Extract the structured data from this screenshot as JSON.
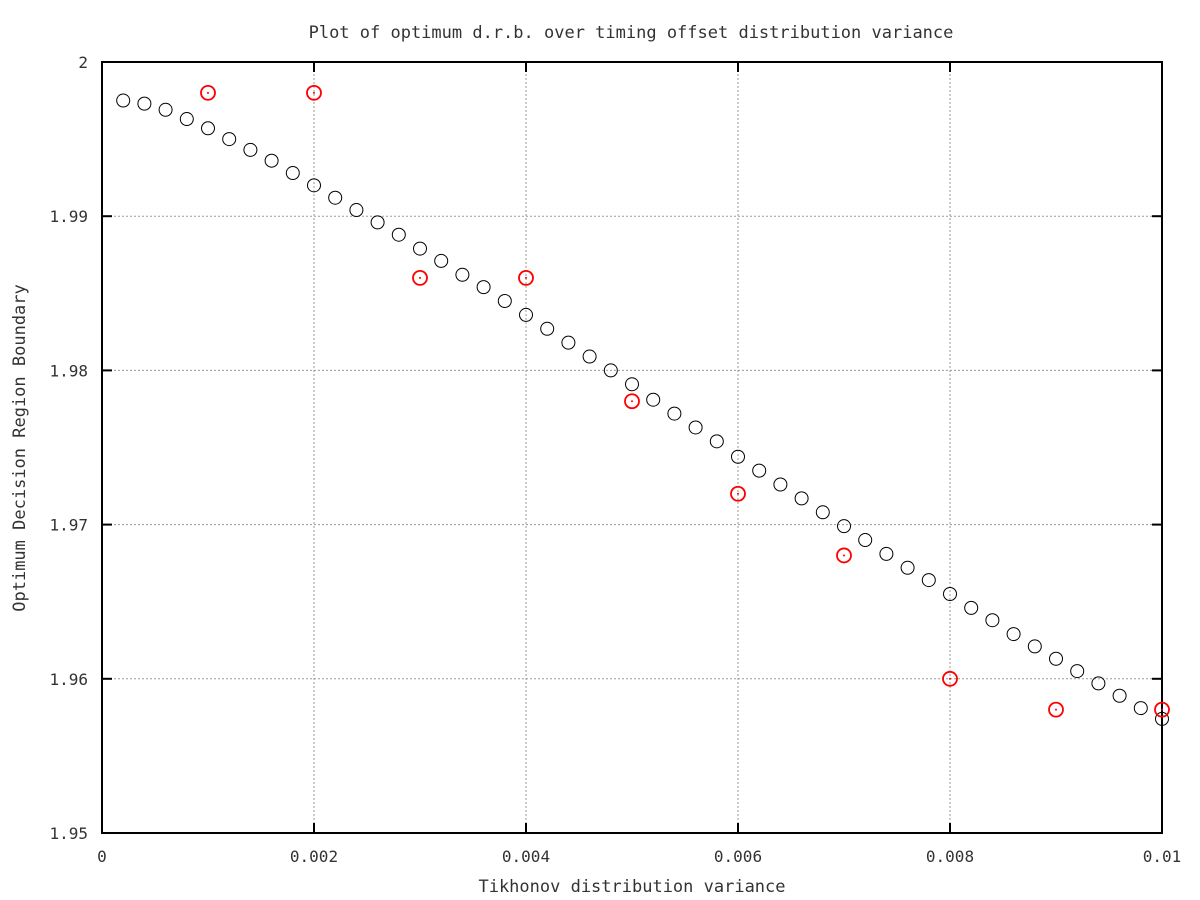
{
  "chart_data": {
    "type": "scatter",
    "title": "Plot of optimum d.r.b. over timing offset distribution variance",
    "xlabel": "Tikhonov distribution variance",
    "ylabel": "Optimum Decision Region Boundary",
    "xlim": [
      0,
      0.01
    ],
    "ylim": [
      1.95,
      2.0
    ],
    "x_ticks": [
      0,
      0.002,
      0.004,
      0.006,
      0.008,
      0.01
    ],
    "x_tick_labels": [
      "0",
      "0.002",
      "0.004",
      "0.006",
      "0.008",
      "0.01"
    ],
    "y_ticks": [
      1.95,
      1.96,
      1.97,
      1.98,
      1.99,
      2.0
    ],
    "y_tick_labels": [
      "1.95",
      "1.96",
      "1.97",
      "1.98",
      "1.99",
      "2"
    ],
    "grid": true,
    "legend": "none",
    "series": [
      {
        "color": "#000000",
        "marker": "open-circle",
        "x": [
          0.0002,
          0.0004,
          0.0006,
          0.0008,
          0.001,
          0.0012,
          0.0014,
          0.0016,
          0.0018,
          0.002,
          0.0022,
          0.0024,
          0.0026,
          0.0028,
          0.003,
          0.0032,
          0.0034,
          0.0036,
          0.0038,
          0.004,
          0.0042,
          0.0044,
          0.0046,
          0.0048,
          0.005,
          0.0052,
          0.0054,
          0.0056,
          0.0058,
          0.006,
          0.0062,
          0.0064,
          0.0066,
          0.0068,
          0.007,
          0.0072,
          0.0074,
          0.0076,
          0.0078,
          0.008,
          0.0082,
          0.0084,
          0.0086,
          0.0088,
          0.009,
          0.0092,
          0.0094,
          0.0096,
          0.0098,
          0.01
        ],
        "y": [
          1.9975,
          1.9973,
          1.9969,
          1.9963,
          1.9957,
          1.995,
          1.9943,
          1.9936,
          1.9928,
          1.992,
          1.9912,
          1.9904,
          1.9896,
          1.9888,
          1.9879,
          1.9871,
          1.9862,
          1.9854,
          1.9845,
          1.9836,
          1.9827,
          1.9818,
          1.9809,
          1.98,
          1.9791,
          1.9781,
          1.9772,
          1.9763,
          1.9754,
          1.9744,
          1.9735,
          1.9726,
          1.9717,
          1.9708,
          1.9699,
          1.969,
          1.9681,
          1.9672,
          1.9664,
          1.9655,
          1.9646,
          1.9638,
          1.9629,
          1.9621,
          1.9613,
          1.9605,
          1.9597,
          1.9589,
          1.9581,
          1.9574
        ]
      },
      {
        "color": "#ff0000",
        "marker": "open-circle-with-center-dot",
        "x": [
          0.001,
          0.002,
          0.003,
          0.004,
          0.005,
          0.006,
          0.007,
          0.008,
          0.009,
          0.01
        ],
        "y": [
          1.998,
          1.998,
          1.986,
          1.986,
          1.978,
          1.972,
          1.968,
          1.96,
          1.958,
          1.958
        ]
      }
    ]
  }
}
